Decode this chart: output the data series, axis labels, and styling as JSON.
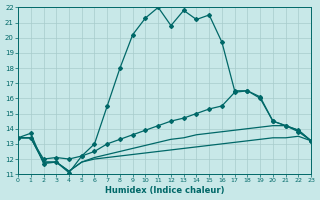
{
  "xlabel": "Humidex (Indice chaleur)",
  "bg_color": "#c8e8e8",
  "grid_color": "#a8cccc",
  "line_color": "#006868",
  "xlim": [
    0,
    23
  ],
  "ylim": [
    11,
    22
  ],
  "xticks": [
    0,
    1,
    2,
    3,
    4,
    5,
    6,
    7,
    8,
    9,
    10,
    11,
    12,
    13,
    14,
    15,
    16,
    17,
    18,
    19,
    20,
    21,
    22,
    23
  ],
  "yticks": [
    11,
    12,
    13,
    14,
    15,
    16,
    17,
    18,
    19,
    20,
    21,
    22
  ],
  "curve1_x": [
    0,
    1,
    2,
    3,
    4,
    5,
    6,
    7,
    8,
    9,
    10,
    11,
    12,
    13,
    14,
    15,
    16,
    17,
    18,
    19,
    20,
    21,
    22,
    23
  ],
  "curve1_y": [
    13.4,
    13.7,
    11.7,
    11.8,
    11.1,
    12.2,
    13.0,
    15.5,
    18.0,
    20.2,
    21.3,
    22.0,
    20.8,
    21.8,
    21.2,
    21.5,
    19.7,
    16.5,
    16.5,
    16.1,
    14.5,
    14.2,
    13.8,
    13.2
  ],
  "curve2_x": [
    0,
    1,
    2,
    3,
    4,
    5,
    6,
    7,
    8,
    9,
    10,
    11,
    12,
    13,
    14,
    15,
    16,
    17,
    18,
    19,
    20,
    21,
    22,
    23
  ],
  "curve2_y": [
    13.4,
    13.4,
    12.0,
    12.1,
    12.0,
    12.2,
    12.5,
    13.0,
    13.3,
    13.6,
    13.9,
    14.2,
    14.5,
    14.7,
    15.0,
    15.3,
    15.5,
    16.4,
    16.5,
    16.0,
    14.5,
    14.2,
    13.9,
    13.2
  ],
  "curve3_x": [
    0,
    1,
    2,
    3,
    4,
    5,
    6,
    7,
    8,
    9,
    10,
    11,
    12,
    13,
    14,
    15,
    16,
    17,
    18,
    19,
    20,
    21,
    22,
    23
  ],
  "curve3_y": [
    13.4,
    13.4,
    11.8,
    11.8,
    11.2,
    11.8,
    12.1,
    12.3,
    12.5,
    12.7,
    12.9,
    13.1,
    13.3,
    13.4,
    13.6,
    13.7,
    13.8,
    13.9,
    14.0,
    14.1,
    14.2,
    14.2,
    13.9,
    13.2
  ],
  "curve4_x": [
    0,
    1,
    2,
    3,
    4,
    5,
    6,
    7,
    8,
    9,
    10,
    11,
    12,
    13,
    14,
    15,
    16,
    17,
    18,
    19,
    20,
    21,
    22,
    23
  ],
  "curve4_y": [
    13.4,
    13.4,
    11.8,
    11.8,
    11.2,
    11.8,
    12.0,
    12.1,
    12.2,
    12.3,
    12.4,
    12.5,
    12.6,
    12.7,
    12.8,
    12.9,
    13.0,
    13.1,
    13.2,
    13.3,
    13.4,
    13.4,
    13.5,
    13.2
  ]
}
